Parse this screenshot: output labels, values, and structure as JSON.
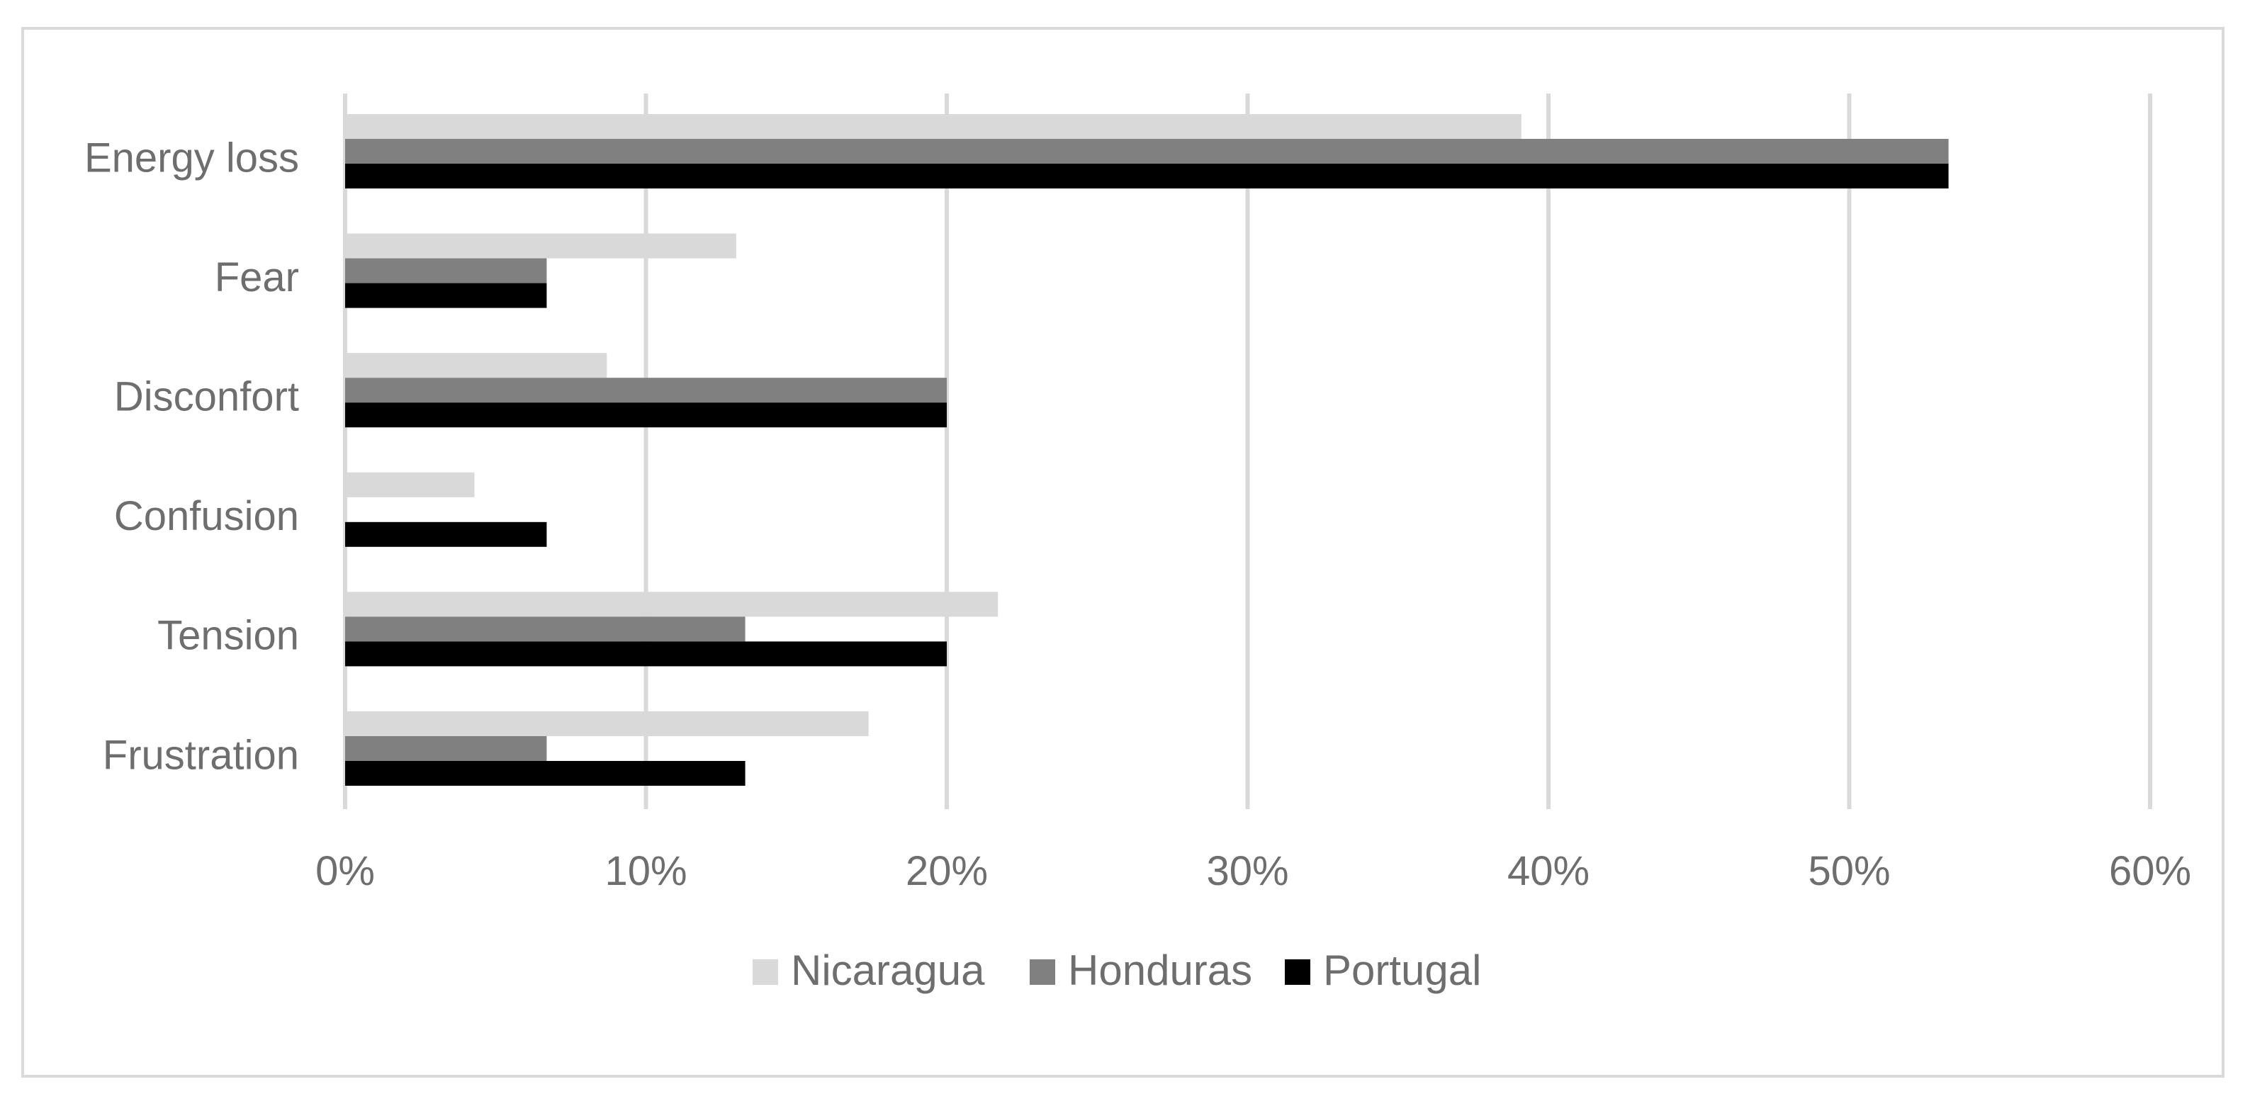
{
  "chart_data": {
    "type": "bar",
    "orientation": "horizontal",
    "title": "",
    "xlabel": "",
    "ylabel": "",
    "categories": [
      "Energy loss",
      "Fear",
      "Disconfort",
      "Confusion",
      "Tension",
      "Frustration"
    ],
    "series": [
      {
        "name": "Nicaragua",
        "color": "#d9d9d9",
        "values": [
          39.1,
          13.0,
          8.7,
          4.3,
          21.7,
          17.4
        ]
      },
      {
        "name": "Honduras",
        "color": "#808080",
        "values": [
          53.3,
          6.7,
          20.0,
          0,
          13.3,
          6.7
        ]
      },
      {
        "name": "Portugal",
        "color": "#000000",
        "values": [
          53.3,
          6.7,
          20.0,
          6.7,
          20.0,
          13.3
        ]
      }
    ],
    "xlim": [
      0,
      60
    ],
    "ticks": [
      0,
      10,
      20,
      30,
      40,
      50,
      60
    ],
    "tick_labels": [
      "0%",
      "10%",
      "20%",
      "30%",
      "40%",
      "50%",
      "60%"
    ],
    "grid": true,
    "legend": "bottom"
  }
}
